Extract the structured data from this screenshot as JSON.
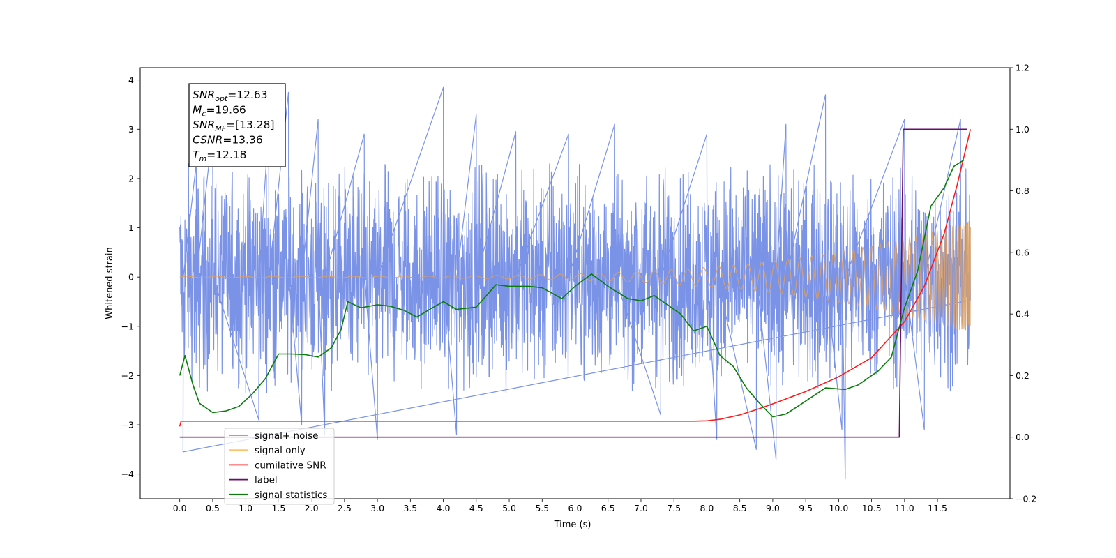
{
  "chart_data": {
    "type": "line",
    "xlabel": "Time (s)",
    "ylabel": "Whitened strain",
    "xlim": [
      -0.6,
      12.6
    ],
    "ylim_left": [
      -4.5,
      4.25
    ],
    "ylim_right": [
      -0.2,
      1.2
    ],
    "x_ticks": [
      "0.0",
      "0.5",
      "1.0",
      "1.5",
      "2.0",
      "2.5",
      "3.0",
      "3.5",
      "4.0",
      "4.5",
      "5.0",
      "5.5",
      "6.0",
      "6.5",
      "7.0",
      "7.5",
      "8.0",
      "8.5",
      "9.0",
      "9.5",
      "10.0",
      "10.5",
      "11.0",
      "11.5"
    ],
    "y_ticks_left": [
      "4",
      "3",
      "2",
      "1",
      "0",
      "−1",
      "−2",
      "−3",
      "−4"
    ],
    "y_ticks_right": [
      "1.2",
      "1.0",
      "0.8",
      "0.6",
      "0.4",
      "0.2",
      "0.0",
      "−0.2"
    ],
    "annotation": {
      "lines": [
        {
          "sym": "SNR",
          "sub": "opt",
          "text": "=12.63"
        },
        {
          "sym": "M",
          "sub": "c",
          "text": "=19.66"
        },
        {
          "sym": "SNR",
          "sub": "MF",
          "text": "=[13.28]"
        },
        {
          "sym": "CSNR",
          "sub": "",
          "text": "=13.36"
        },
        {
          "sym": "T",
          "sub": "m",
          "text": "=12.18"
        }
      ]
    },
    "legend": {
      "placement": "lower-left",
      "entries": [
        {
          "label": "signal+ noise",
          "color": "#7b93e6"
        },
        {
          "label": "signal only",
          "color": "#ffc46b"
        },
        {
          "label": "cumilative SNR",
          "color": "#ff1a1a"
        },
        {
          "label": "label",
          "color": "#6a0d6a"
        },
        {
          "label": "signal statistics",
          "color": "#0a7d0a"
        }
      ]
    },
    "series": [
      {
        "name": "signal+ noise",
        "axis": "left",
        "color": "#7b93e6",
        "style": "noise",
        "x_range": [
          0.0,
          12.0
        ],
        "envelope": [
          -1.7,
          1.7
        ],
        "peaks": [
          [
            0.05,
            -3.55
          ],
          [
            0.25,
            2.3
          ],
          [
            0.5,
            3.0
          ],
          [
            1.2,
            -2.9
          ],
          [
            1.35,
            3.1
          ],
          [
            1.65,
            3.75
          ],
          [
            1.85,
            -3.0
          ],
          [
            2.1,
            3.2
          ],
          [
            2.2,
            -3.2
          ],
          [
            2.8,
            2.9
          ],
          [
            3.0,
            -3.3
          ],
          [
            4.0,
            3.85
          ],
          [
            4.2,
            -3.2
          ],
          [
            4.5,
            3.3
          ],
          [
            5.1,
            2.95
          ],
          [
            5.9,
            2.9
          ],
          [
            6.6,
            3.1
          ],
          [
            7.3,
            -2.8
          ],
          [
            8.0,
            2.9
          ],
          [
            8.15,
            -3.3
          ],
          [
            8.75,
            -3.5
          ],
          [
            9.05,
            -3.7
          ],
          [
            9.2,
            3.1
          ],
          [
            9.8,
            3.7
          ],
          [
            10.05,
            -3.1
          ],
          [
            10.1,
            -4.1
          ],
          [
            11.0,
            3.2
          ],
          [
            11.3,
            -3.1
          ],
          [
            11.85,
            3.2
          ]
        ]
      },
      {
        "name": "signal only",
        "axis": "left",
        "color": "#d9a066",
        "style": "chirp",
        "x_range": [
          0.0,
          12.0
        ],
        "start_amplitude": 0.015,
        "end_amplitude": 1.15
      },
      {
        "name": "cumilative SNR",
        "axis": "right",
        "color": "#ff1a1a",
        "points": [
          [
            0.0,
            0.035
          ],
          [
            0.02,
            0.052
          ],
          [
            7.8,
            0.052
          ],
          [
            8.0,
            0.053
          ],
          [
            8.2,
            0.058
          ],
          [
            8.5,
            0.072
          ],
          [
            8.8,
            0.093
          ],
          [
            9.0,
            0.108
          ],
          [
            9.5,
            0.148
          ],
          [
            10.0,
            0.196
          ],
          [
            10.5,
            0.258
          ],
          [
            11.0,
            0.375
          ],
          [
            11.3,
            0.49
          ],
          [
            11.6,
            0.66
          ],
          [
            11.8,
            0.82
          ],
          [
            11.9,
            0.91
          ],
          [
            12.0,
            1.0
          ]
        ]
      },
      {
        "name": "label",
        "axis": "right",
        "color": "#6a0d6a",
        "points": [
          [
            0.0,
            0.0
          ],
          [
            10.92,
            0.0
          ],
          [
            10.98,
            1.0
          ],
          [
            11.95,
            1.0
          ]
        ]
      },
      {
        "name": "signal statistics",
        "axis": "right",
        "color": "#0a7d0a",
        "points": [
          [
            0.0,
            0.2
          ],
          [
            0.08,
            0.265
          ],
          [
            0.2,
            0.17
          ],
          [
            0.3,
            0.11
          ],
          [
            0.5,
            0.08
          ],
          [
            0.7,
            0.085
          ],
          [
            0.9,
            0.1
          ],
          [
            1.1,
            0.14
          ],
          [
            1.3,
            0.19
          ],
          [
            1.5,
            0.27
          ],
          [
            1.7,
            0.27
          ],
          [
            1.9,
            0.268
          ],
          [
            2.1,
            0.26
          ],
          [
            2.3,
            0.29
          ],
          [
            2.45,
            0.35
          ],
          [
            2.55,
            0.44
          ],
          [
            2.75,
            0.42
          ],
          [
            3.0,
            0.43
          ],
          [
            3.2,
            0.425
          ],
          [
            3.4,
            0.412
          ],
          [
            3.6,
            0.39
          ],
          [
            3.8,
            0.416
          ],
          [
            4.0,
            0.44
          ],
          [
            4.2,
            0.415
          ],
          [
            4.5,
            0.422
          ],
          [
            4.8,
            0.495
          ],
          [
            5.0,
            0.49
          ],
          [
            5.3,
            0.49
          ],
          [
            5.5,
            0.485
          ],
          [
            5.8,
            0.45
          ],
          [
            6.0,
            0.49
          ],
          [
            6.25,
            0.53
          ],
          [
            6.5,
            0.49
          ],
          [
            6.8,
            0.45
          ],
          [
            7.0,
            0.443
          ],
          [
            7.2,
            0.46
          ],
          [
            7.4,
            0.43
          ],
          [
            7.6,
            0.4
          ],
          [
            7.8,
            0.345
          ],
          [
            8.0,
            0.36
          ],
          [
            8.2,
            0.265
          ],
          [
            8.4,
            0.23
          ],
          [
            8.6,
            0.16
          ],
          [
            8.8,
            0.11
          ],
          [
            9.0,
            0.066
          ],
          [
            9.2,
            0.075
          ],
          [
            9.45,
            0.11
          ],
          [
            9.8,
            0.16
          ],
          [
            10.1,
            0.155
          ],
          [
            10.3,
            0.17
          ],
          [
            10.6,
            0.215
          ],
          [
            10.8,
            0.26
          ],
          [
            11.0,
            0.42
          ],
          [
            11.2,
            0.54
          ],
          [
            11.4,
            0.75
          ],
          [
            11.6,
            0.81
          ],
          [
            11.75,
            0.88
          ],
          [
            11.9,
            0.9
          ]
        ]
      }
    ]
  }
}
